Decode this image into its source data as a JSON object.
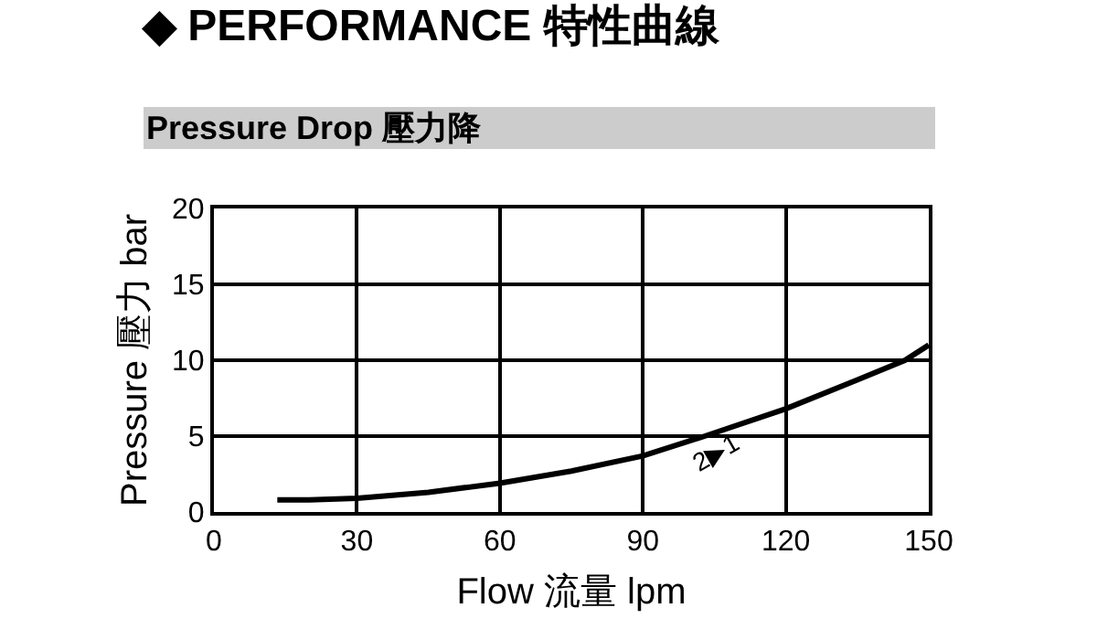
{
  "chart_data": {
    "type": "line",
    "title": "◆ PERFORMANCE 特性曲線",
    "subtitle": "Pressure Drop 壓力降",
    "xlabel": "Flow 流量 lpm",
    "ylabel": "Pressure 壓力 bar",
    "x": [
      13.3,
      20,
      30,
      45,
      60,
      75,
      90,
      103,
      120,
      135,
      145,
      150
    ],
    "series": [
      {
        "color": "#000000",
        "values": [
          0.8,
          0.8,
          0.9,
          1.3,
          1.9,
          2.7,
          3.7,
          5.0,
          6.8,
          8.7,
          10.0,
          11.0
        ]
      }
    ],
    "annotations": [
      "2▶1"
    ],
    "xlim": [
      0,
      150
    ],
    "xticks": [
      0,
      30,
      60,
      90,
      120,
      150
    ],
    "ylim": [
      0,
      20
    ],
    "yticks": [
      0,
      5,
      10,
      15,
      20
    ],
    "grid": true,
    "legend": false,
    "marker": "none",
    "line_style": "solid"
  }
}
